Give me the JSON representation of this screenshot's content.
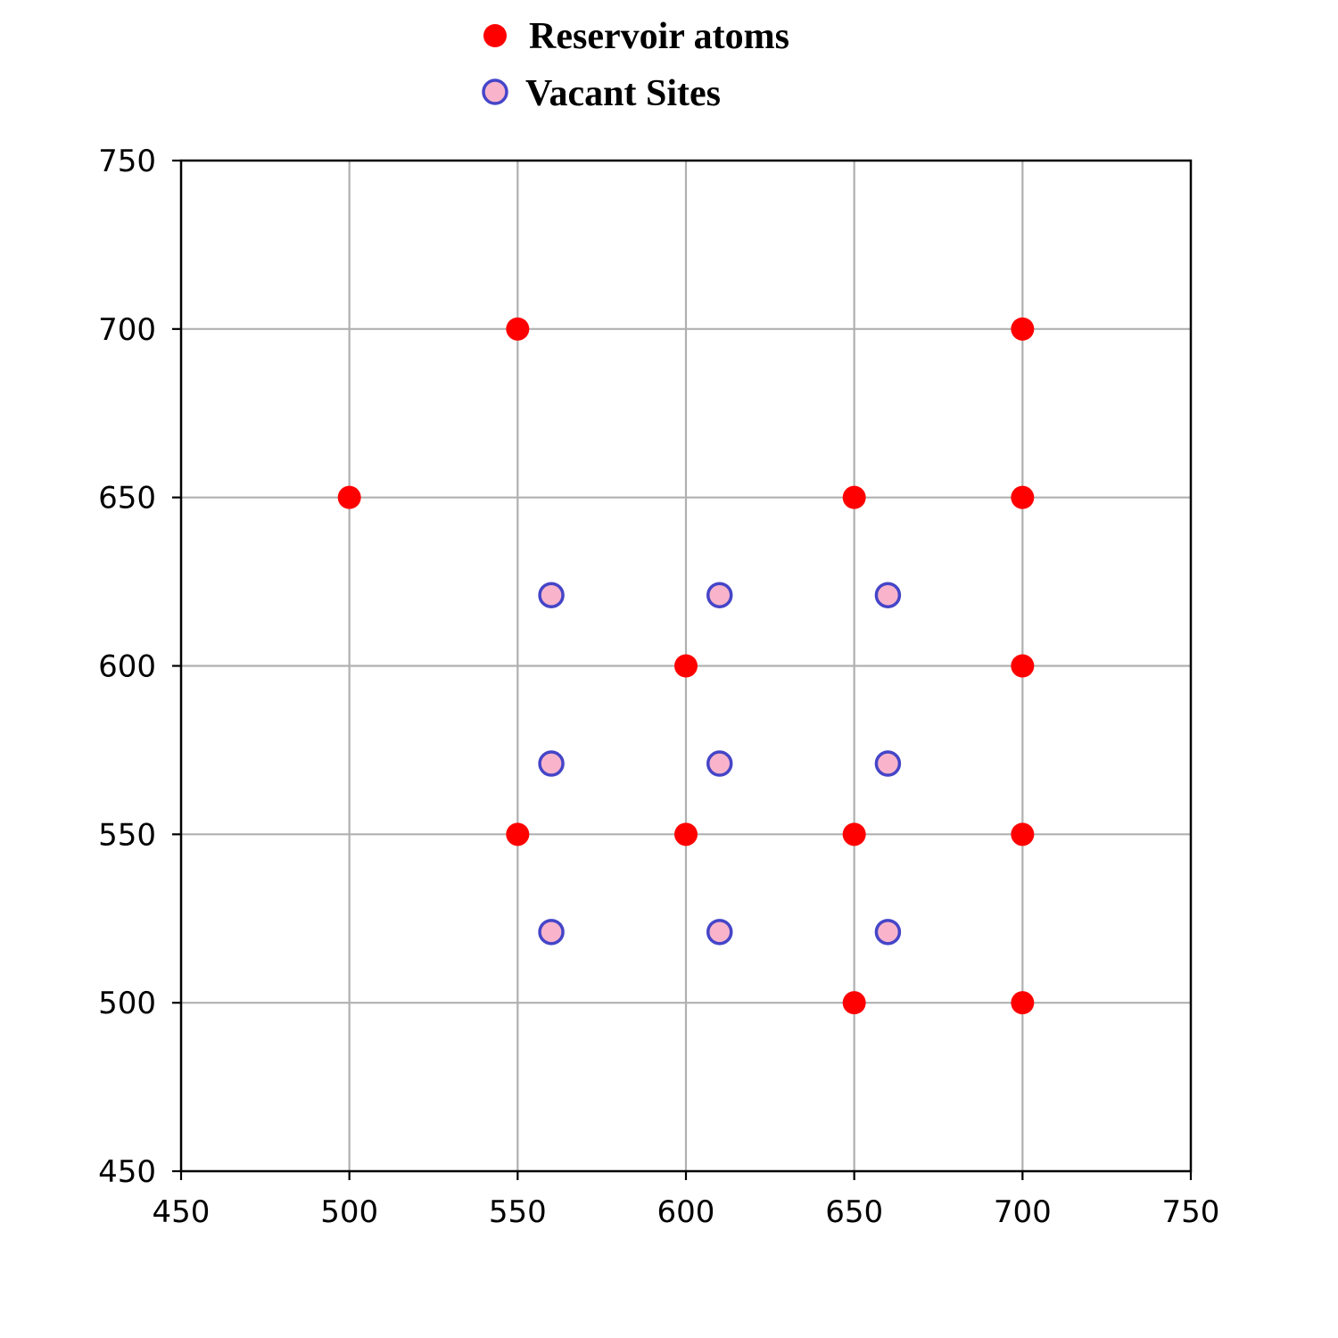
{
  "chart_data": {
    "type": "scatter",
    "title": "",
    "xlabel": "",
    "ylabel": "",
    "xlim": [
      450,
      750
    ],
    "ylim": [
      450,
      750
    ],
    "x_ticks": [
      450,
      500,
      550,
      600,
      650,
      700,
      750
    ],
    "y_ticks": [
      450,
      500,
      550,
      600,
      650,
      700,
      750
    ],
    "x_tick_labels": [
      "450",
      "500",
      "550",
      "600",
      "650",
      "700",
      "750"
    ],
    "y_tick_labels": [
      "450",
      "500",
      "550",
      "600",
      "650",
      "700",
      "750"
    ],
    "grid": true,
    "legend_position": "top-center, above plot",
    "series": [
      {
        "name": "Reservoir atoms",
        "marker": "filled-circle",
        "color": "#ff0000",
        "points": [
          [
            550,
            700
          ],
          [
            700,
            700
          ],
          [
            500,
            650
          ],
          [
            650,
            650
          ],
          [
            700,
            650
          ],
          [
            600,
            600
          ],
          [
            700,
            600
          ],
          [
            550,
            550
          ],
          [
            600,
            550
          ],
          [
            650,
            550
          ],
          [
            700,
            550
          ],
          [
            650,
            500
          ],
          [
            700,
            500
          ]
        ]
      },
      {
        "name": "Vacant Sites",
        "marker": "circle-outline",
        "color": "#f9b4cb",
        "edge_color": "#4545c8",
        "points": [
          [
            560,
            621
          ],
          [
            610,
            621
          ],
          [
            660,
            621
          ],
          [
            560,
            571
          ],
          [
            610,
            571
          ],
          [
            660,
            571
          ],
          [
            560,
            521
          ],
          [
            610,
            521
          ],
          [
            660,
            521
          ]
        ]
      }
    ]
  }
}
